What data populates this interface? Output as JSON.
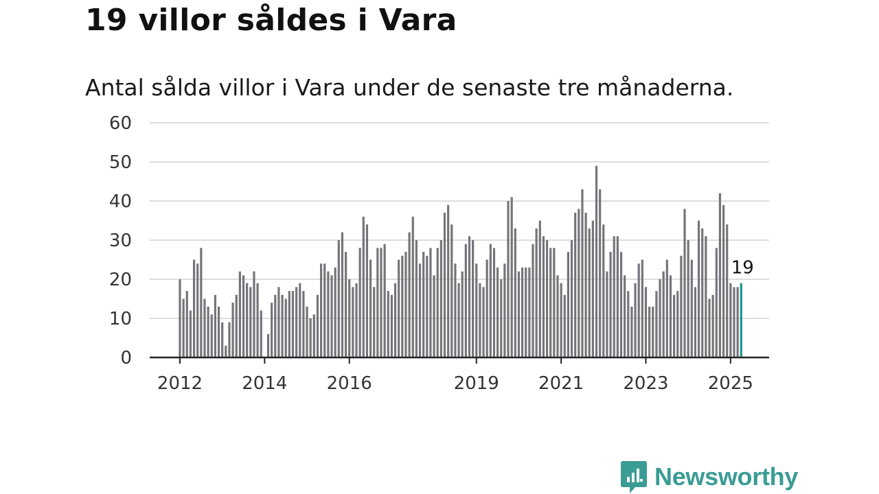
{
  "title": "19 villor såldes i Vara",
  "subtitle": "Antal sålda villor i Vara under de senaste tre månaderna.",
  "brand": "Newsworthy",
  "colors": {
    "bar": "#76747a",
    "highlight": "#1a948c",
    "grid": "#dddddd",
    "axis": "#222222",
    "brand": "#3a9c95"
  },
  "chart_data": {
    "type": "bar",
    "title": "Antal sålda villor i Vara under de senaste tre månaderna.",
    "x_unit": "month",
    "x_ticks": [
      "2012",
      "2014",
      "2016",
      "2019",
      "2021",
      "2023",
      "2025"
    ],
    "y_ticks": [
      "0",
      "10",
      "20",
      "30",
      "40",
      "50",
      "60"
    ],
    "ylim": [
      0,
      60
    ],
    "grid": true,
    "start": "2012-01",
    "end": "2025-03",
    "values": [
      20,
      15,
      17,
      12,
      25,
      24,
      28,
      15,
      13,
      11,
      16,
      13,
      9,
      3,
      9,
      14,
      16,
      22,
      21,
      19,
      18,
      22,
      19,
      12,
      0,
      6,
      14,
      16,
      18,
      16,
      15,
      17,
      17,
      18,
      19,
      17,
      13,
      10,
      11,
      16,
      24,
      24,
      22,
      21,
      23,
      30,
      32,
      27,
      20,
      18,
      19,
      28,
      36,
      34,
      25,
      18,
      28,
      28,
      29,
      17,
      16,
      19,
      25,
      26,
      27,
      32,
      36,
      30,
      24,
      27,
      26,
      28,
      21,
      28,
      30,
      37,
      39,
      34,
      24,
      19,
      22,
      29,
      31,
      30,
      24,
      19,
      18,
      25,
      29,
      28,
      23,
      20,
      24,
      40,
      41,
      33,
      22,
      23,
      23,
      23,
      29,
      33,
      35,
      31,
      30,
      28,
      28,
      21,
      19,
      16,
      27,
      30,
      37,
      38,
      43,
      37,
      33,
      35,
      49,
      43,
      34,
      22,
      27,
      31,
      31,
      27,
      21,
      17,
      13,
      19,
      24,
      25,
      18,
      13,
      13,
      17,
      20,
      22,
      25,
      21,
      16,
      17,
      26,
      38,
      30,
      25,
      18,
      35,
      33,
      31,
      15,
      16,
      28,
      42,
      39,
      34,
      19,
      18,
      18,
      19
    ],
    "highlight": {
      "label": "19",
      "value": 19
    }
  }
}
